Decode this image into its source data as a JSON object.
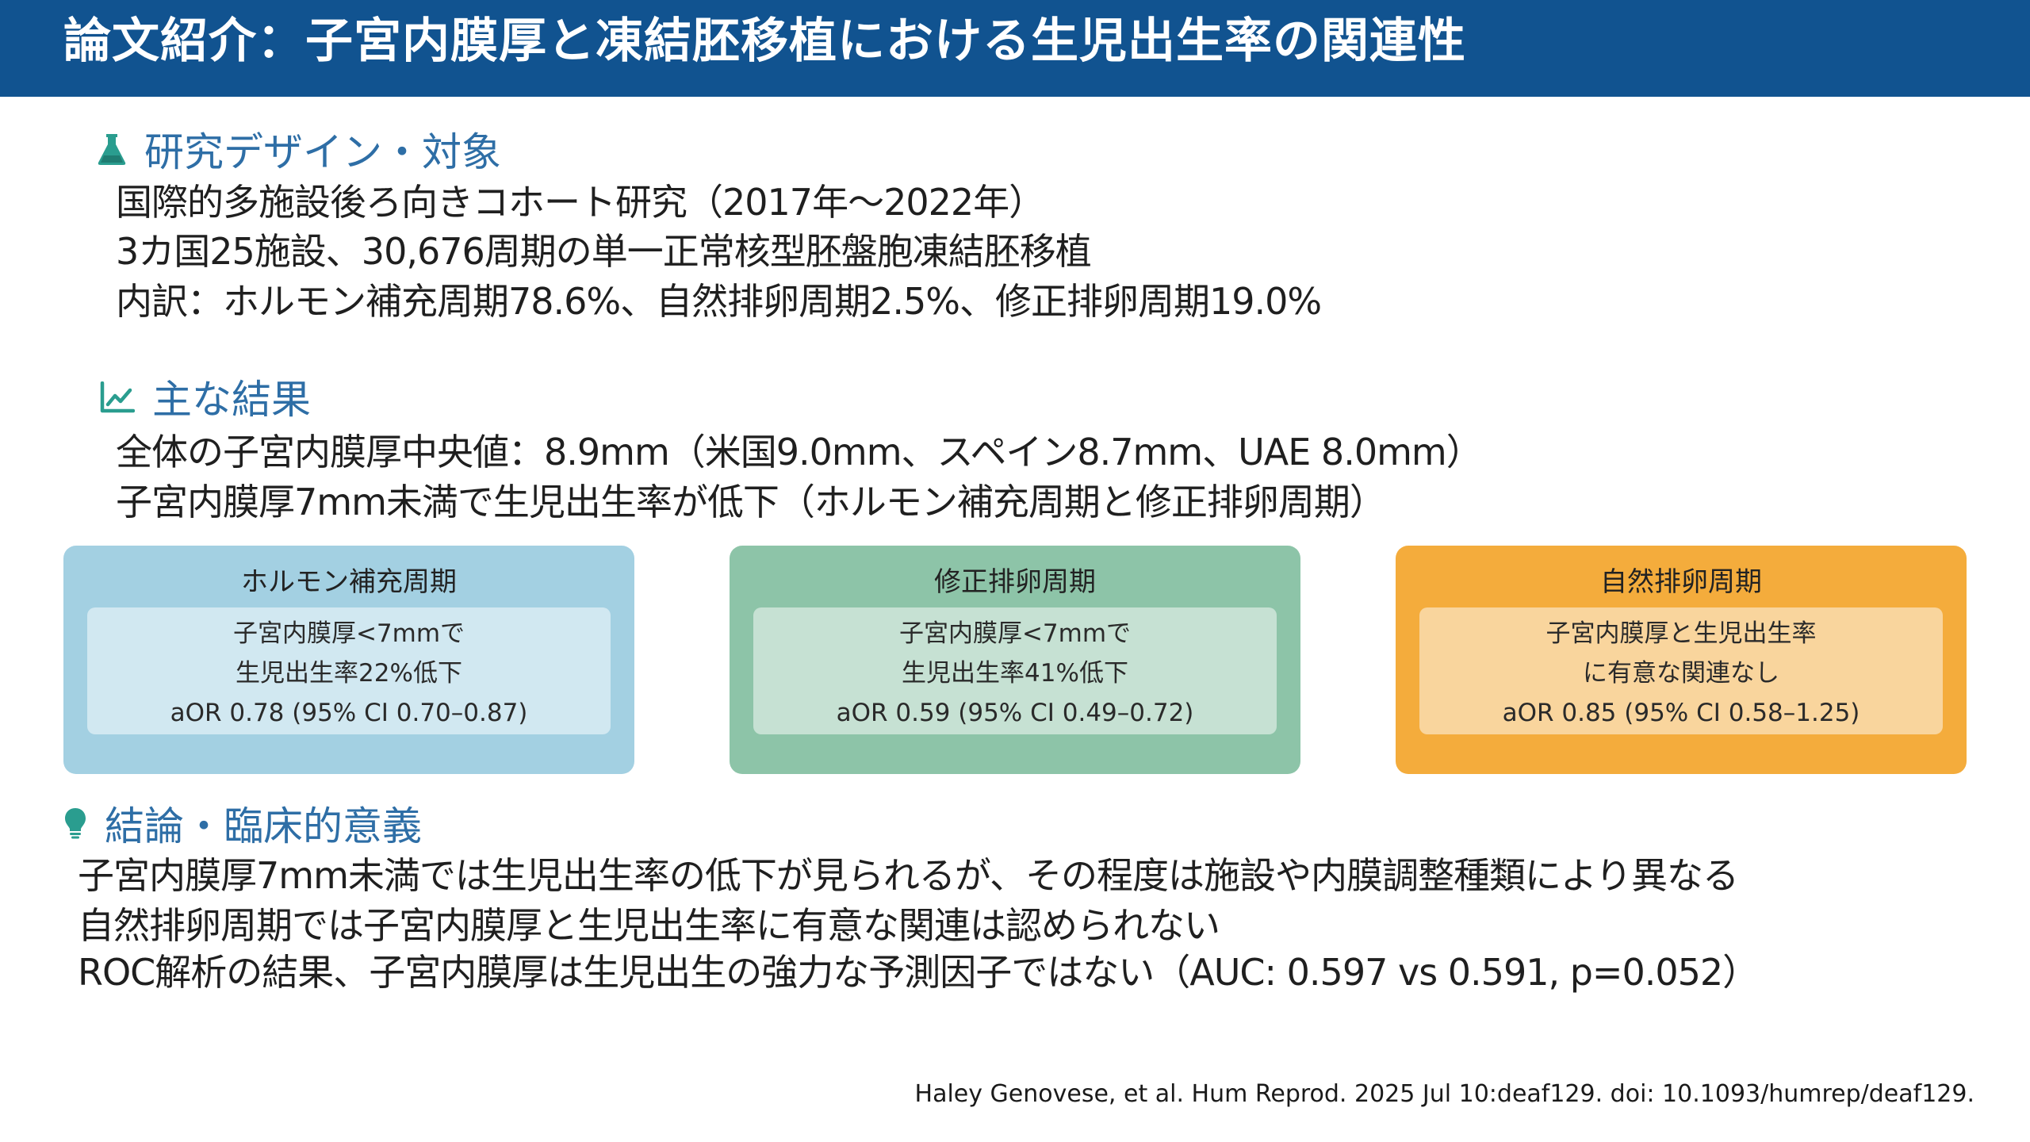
{
  "header": {
    "title": "論文紹介：子宮内膜厚と凍結胚移植における生児出生率の関連性"
  },
  "design": {
    "heading": "研究デザイン・対象",
    "icon": "flask-icon",
    "lines": [
      "国際的多施設後ろ向きコホート研究（2017年〜2022年）",
      "3カ国25施設、30,676周期の単一正常核型胚盤胞凍結胚移植",
      "内訳：ホルモン補充周期78.6%、自然排卵周期2.5%、修正排卵周期19.0%"
    ]
  },
  "results": {
    "heading": "主な結果",
    "icon": "chart-line-icon",
    "lines": [
      "全体の子宮内膜厚中央値：8.9mm（米国9.0mm、スペイン8.7mm、UAE 8.0mm）",
      "子宮内膜厚7mm未満で生児出生率が低下（ホルモン補充周期と修正排卵周期）"
    ]
  },
  "cards": [
    {
      "title": "ホルモン補充周期",
      "line1": "子宮内膜厚<7mmで",
      "line2": "生児出生率22%低下",
      "line3": "aOR 0.78 (95% CI 0.70–0.87)",
      "bg": "#a3d0e2",
      "inner_bg": "#d1e8f1"
    },
    {
      "title": "修正排卵周期",
      "line1": "子宮内膜厚<7mmで",
      "line2": "生児出生率41%低下",
      "line3": "aOR 0.59 (95% CI 0.49–0.72)",
      "bg": "#8dc4a8",
      "inner_bg": "#c6e1d3"
    },
    {
      "title": "自然排卵周期",
      "line1": "子宮内膜厚と生児出生率",
      "line2": "に有意な関連なし",
      "line3": "aOR 0.85 (95% CI 0.58–1.25)",
      "bg": "#f4ac3c",
      "inner_bg": "#f9d59d"
    }
  ],
  "conclusion": {
    "heading": "結論・臨床的意義",
    "icon": "lightbulb-icon",
    "lines": [
      "子宮内膜厚7mm未満では生児出生率の低下が見られるが、その程度は施設や内膜調整種類により異なる",
      "自然排卵周期では子宮内膜厚と生児出生率に有意な関連は認められない",
      "ROC解析の結果、子宮内膜厚は生児出生の強力な予測因子ではない（AUC: 0.597 vs 0.591, p=0.052）"
    ]
  },
  "citation": "Haley Genovese, et al. Hum Reprod. 2025 Jul 10:deaf129.  doi: 10.1093/humrep/deaf129.",
  "colors": {
    "header_bg": "#115390",
    "heading_text": "#2e6ea6",
    "icon_teal": "#2a9d8f"
  }
}
